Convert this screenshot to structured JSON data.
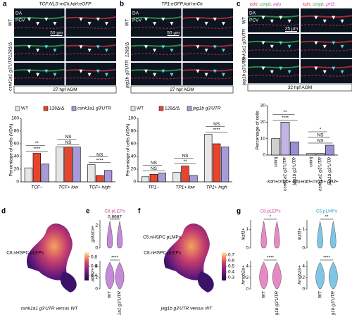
{
  "figure": {
    "a": {
      "label": "a",
      "header": "TCF:NLS-mCh;kdrl:eGFP",
      "rows": [
        "WT",
        "128Δ/Δ",
        "csnk1a1 g3'UTR"
      ],
      "vessels": [
        "DA",
        "PCV"
      ],
      "scale_bar": "50 µm",
      "caption": "27 hpf AGM"
    },
    "b": {
      "label": "b",
      "header": "TP1:eGFP;kdrl:mCh",
      "rows": [
        "WT",
        "128Δ/Δ",
        "jag1b g3'UTR"
      ],
      "vessels": [
        "DA",
        "PCV"
      ],
      "scale_bar": "50 µm",
      "caption": "27 hpf AGM"
    },
    "c": {
      "label": "c",
      "headers": [
        [
          "kdrl",
          "cmyb",
          "edu"
        ],
        [
          "kdrl",
          "cmyb",
          "pH3"
        ]
      ],
      "header_colors": [
        "#e8305a",
        "#2e9e3e",
        "#c832c0"
      ],
      "rows": [
        "WT",
        "csnk1a1 g3'UTR",
        "jag1b g3'UTR"
      ],
      "vessels": [
        "DA",
        "PCV"
      ],
      "scale_bar": "25 µm",
      "caption": "32 hpf AGM"
    },
    "d": {
      "label": "d",
      "clusters": [
        "C8.nHSPC pLEPs"
      ],
      "caption": "csnk1a1 g3'UTR versus WT",
      "colorbar_lim": [
        0.3,
        0.9
      ],
      "colorbar_ticks": [
        0.4,
        0.6,
        0.8
      ]
    },
    "e": {
      "label": "e",
      "groups": [
        "WT",
        "csnk1a1 g3'UTR"
      ],
      "plots": [
        {
          "title": "C8.pLEPs",
          "title_color": "#d04ca0",
          "violin_color": "#c58ad8",
          "genes": [
            "gata1a+",
            "alas2+"
          ],
          "stats": [
            "0.8687",
            "****"
          ],
          "ylims": [
            [
              0,
              2.5
            ],
            [
              0,
              5
            ]
          ],
          "yticks": [
            [
              0,
              2
            ],
            [
              0,
              2,
              4
            ]
          ]
        }
      ]
    },
    "f": {
      "label": "f",
      "clusters": [
        "C5.nHSPC pLMPs",
        "C8.nHSPC pLEPs"
      ],
      "caption": "jag1b g3'UTR versus WT",
      "colorbar_lim": [
        0.25,
        0.75
      ],
      "colorbar_ticks": [
        0.3,
        0.4,
        0.5,
        0.6,
        0.7
      ]
    },
    "g": {
      "label": "g",
      "groups": [
        "WT",
        "jag1b g3'UTR"
      ],
      "plots": [
        {
          "title": "C8.pLEPs",
          "title_color": "#d04ca0",
          "violin_color": "#e78ac4",
          "genes": [
            "ikzf1+",
            "hmgb2a+"
          ],
          "stats": [
            "*",
            "****"
          ],
          "ylims": [
            [
              0,
              1.5
            ],
            [
              0,
              5
            ]
          ],
          "yticks": [
            [
              0,
              1
            ],
            [
              0,
              2,
              4
            ]
          ]
        },
        {
          "title": "C5.pLMPs",
          "title_color": "#30a8c8",
          "violin_color": "#7fc6e4",
          "genes": [
            "ikzf1+",
            "hmgb2a+"
          ],
          "stats": [
            "**",
            "****"
          ],
          "ylims": [
            [
              0,
              1.5
            ],
            [
              0,
              5
            ]
          ],
          "yticks": [
            [
              0,
              1
            ],
            [
              0,
              2,
              4
            ]
          ]
        }
      ]
    }
  },
  "chart_data": [
    {
      "type": "bar",
      "ylabel": "Percentage of cells (VDA)",
      "categories": [
        "TCF−",
        "TCF+ low",
        "TCF+ high"
      ],
      "series": [
        {
          "name": "WT",
          "color": "#e6e6e6",
          "values": [
            22,
            55,
            27
          ]
        },
        {
          "name": "128Δ/Δ",
          "color": "#e8452f",
          "values": [
            45,
            55,
            10
          ]
        },
        {
          "name": "csnk1a1 g3'UTR",
          "color": "#a99ad8",
          "values": [
            28,
            55,
            18
          ]
        }
      ],
      "ylim": [
        0,
        100
      ],
      "yticks": [
        0,
        20,
        40,
        60,
        80,
        100
      ],
      "significance": [
        [
          "****",
          "**"
        ],
        [
          "NS",
          "NS"
        ],
        [
          "****",
          "NS"
        ]
      ],
      "legend": "top"
    },
    {
      "type": "bar",
      "ylabel": "Percentage of cells (VDA)",
      "categories": [
        "TP1−",
        "TP1+ low",
        "TP1+ high"
      ],
      "series": [
        {
          "name": "WT",
          "color": "#e6e6e6",
          "values": [
            8,
            15,
            75
          ]
        },
        {
          "name": "128Δ/Δ",
          "color": "#e8452f",
          "values": [
            12,
            25,
            60
          ]
        },
        {
          "name": "jag1b g3'UTR",
          "color": "#a99ad8",
          "values": [
            14,
            10,
            55
          ]
        }
      ],
      "ylim": [
        0,
        100
      ],
      "yticks": [
        0,
        20,
        40,
        60,
        80,
        100
      ],
      "significance": [
        [
          "NS",
          "NS"
        ],
        [
          "**",
          "NS"
        ],
        [
          "****",
          "NS"
        ]
      ],
      "legend": "top"
    },
    {
      "type": "bar",
      "ylabel": "Percentage of cells",
      "categories": [
        "kdrl+cmyb+ edu+",
        "kdrl+cmyb+ pH3+"
      ],
      "series": [
        {
          "name": "uninj",
          "color": "#d0d0d0",
          "values": [
            10,
            1
          ]
        },
        {
          "name": "csnk1a1 g3'UTR",
          "color": "#c4b4e4",
          "values": [
            20,
            1
          ]
        },
        {
          "name": "jag1b g3'UTR",
          "color": "#9a8fd0",
          "values": [
            8,
            6
          ]
        }
      ],
      "ylim": [
        0,
        30
      ],
      "yticks": [
        0,
        10,
        20,
        30
      ],
      "significance": [
        [
          "****",
          "**"
        ],
        [
          "NS",
          "NS",
          "*"
        ]
      ]
    }
  ]
}
